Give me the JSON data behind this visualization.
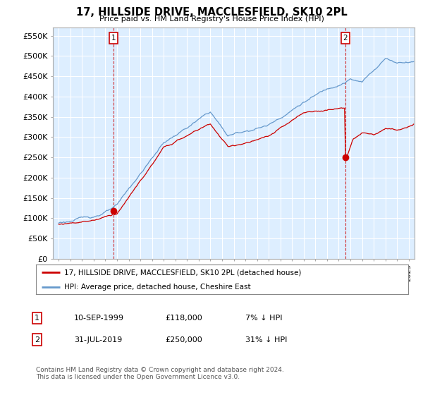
{
  "title": "17, HILLSIDE DRIVE, MACCLESFIELD, SK10 2PL",
  "subtitle": "Price paid vs. HM Land Registry's House Price Index (HPI)",
  "ytick_values": [
    0,
    50000,
    100000,
    150000,
    200000,
    250000,
    300000,
    350000,
    400000,
    450000,
    500000,
    550000
  ],
  "ylim": [
    0,
    570000
  ],
  "xlim_start": 1994.5,
  "xlim_end": 2025.5,
  "plot_bg_color": "#ddeeff",
  "hpi_color": "#6699cc",
  "price_color": "#cc0000",
  "vline_color": "#cc0000",
  "marker1_date": 1999.69,
  "marker1_price": 118000,
  "marker1_label": "1",
  "marker2_date": 2019.58,
  "marker2_price": 250000,
  "marker2_label": "2",
  "legend_line1": "17, HILLSIDE DRIVE, MACCLESFIELD, SK10 2PL (detached house)",
  "legend_line2": "HPI: Average price, detached house, Cheshire East",
  "annotation1_date": "10-SEP-1999",
  "annotation1_price": "£118,000",
  "annotation1_hpi": "7% ↓ HPI",
  "annotation2_date": "31-JUL-2019",
  "annotation2_price": "£250,000",
  "annotation2_hpi": "31% ↓ HPI",
  "footnote": "Contains HM Land Registry data © Crown copyright and database right 2024.\nThis data is licensed under the Open Government Licence v3.0.",
  "background_color": "#ffffff",
  "grid_color": "#ffffff"
}
